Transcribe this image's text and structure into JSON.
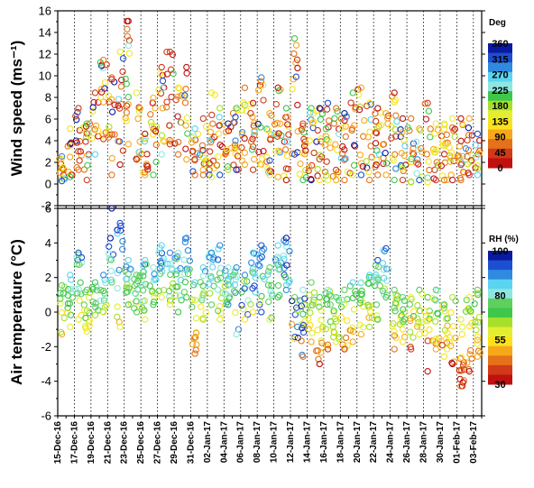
{
  "chart_data": [
    {
      "type": "scatter",
      "ylabel": "Wind speed (ms⁻¹)",
      "ylim": [
        -2,
        17
      ],
      "yticks": [
        "-2",
        "0",
        "2",
        "4",
        "6",
        "8",
        "10",
        "12",
        "14",
        "16"
      ],
      "colorbar": {
        "title": "Deg",
        "ticks": [
          "360",
          "315",
          "270",
          "225",
          "180",
          "135",
          "90",
          "45",
          "0"
        ],
        "colors": [
          "#0a1aa0",
          "#1c4fd0",
          "#2f8ae0",
          "#5ad4f0",
          "#8fe6e0",
          "#3ec84a",
          "#a6e02a",
          "#e4ee30",
          "#fbe21c",
          "#f7a81a",
          "#e4721a",
          "#d03a18",
          "#c01010"
        ]
      },
      "daily_ranges": [
        {
          "date": "15-Dec-16",
          "min": 0.4,
          "max": 2.8
        },
        {
          "date": "16-Dec-16",
          "min": 0.8,
          "max": 5.5
        },
        {
          "date": "17-Dec-16",
          "min": 1.5,
          "max": 7.5
        },
        {
          "date": "18-Dec-16",
          "min": 0.5,
          "max": 6.0
        },
        {
          "date": "19-Dec-16",
          "min": 3.0,
          "max": 9.0
        },
        {
          "date": "20-Dec-16",
          "min": 4.5,
          "max": 12.2
        },
        {
          "date": "21-Dec-16",
          "min": 1.0,
          "max": 10.5
        },
        {
          "date": "22-Dec-16",
          "min": 2.0,
          "max": 13.0
        },
        {
          "date": "23-Dec-16",
          "min": 4.0,
          "max": 16.0
        },
        {
          "date": "24-Dec-16",
          "min": 2.5,
          "max": 9.0
        },
        {
          "date": "25-Dec-16",
          "min": 1.0,
          "max": 5.0
        },
        {
          "date": "26-Dec-16",
          "min": 1.0,
          "max": 8.5
        },
        {
          "date": "27-Dec-16",
          "min": 3.0,
          "max": 11.5
        },
        {
          "date": "28-Dec-16",
          "min": 4.0,
          "max": 13.0
        },
        {
          "date": "29-Dec-16",
          "min": 3.0,
          "max": 9.5
        },
        {
          "date": "30-Dec-16",
          "min": 2.5,
          "max": 11.5
        },
        {
          "date": "31-Dec-16",
          "min": 1.0,
          "max": 5.5
        },
        {
          "date": "01-Jan-17",
          "min": 1.0,
          "max": 6.5
        },
        {
          "date": "02-Jan-17",
          "min": 0.8,
          "max": 9.0
        },
        {
          "date": "03-Jan-17",
          "min": 1.0,
          "max": 7.5
        },
        {
          "date": "04-Jan-17",
          "min": 1.5,
          "max": 6.0
        },
        {
          "date": "05-Jan-17",
          "min": 1.5,
          "max": 7.5
        },
        {
          "date": "06-Jan-17",
          "min": 2.0,
          "max": 9.5
        },
        {
          "date": "07-Jan-17",
          "min": 1.5,
          "max": 8.0
        },
        {
          "date": "08-Jan-17",
          "min": 2.0,
          "max": 10.5
        },
        {
          "date": "09-Jan-17",
          "min": 1.0,
          "max": 7.0
        },
        {
          "date": "10-Jan-17",
          "min": 0.8,
          "max": 9.5
        },
        {
          "date": "11-Jan-17",
          "min": 0.5,
          "max": 7.5
        },
        {
          "date": "12-Jan-17",
          "min": 3.0,
          "max": 14.3
        },
        {
          "date": "13-Jan-17",
          "min": 0.5,
          "max": 6.0
        },
        {
          "date": "14-Jan-17",
          "min": 0.5,
          "max": 7.5
        },
        {
          "date": "15-Jan-17",
          "min": 0.5,
          "max": 7.5
        },
        {
          "date": "16-Jan-17",
          "min": 0.5,
          "max": 8.0
        },
        {
          "date": "17-Jan-17",
          "min": 0.5,
          "max": 7.5
        },
        {
          "date": "18-Jan-17",
          "min": 0.5,
          "max": 7.0
        },
        {
          "date": "19-Jan-17",
          "min": 1.0,
          "max": 9.0
        },
        {
          "date": "20-Jan-17",
          "min": 1.0,
          "max": 9.5
        },
        {
          "date": "21-Jan-17",
          "min": 0.5,
          "max": 8.0
        },
        {
          "date": "22-Jan-17",
          "min": 1.0,
          "max": 7.5
        },
        {
          "date": "23-Jan-17",
          "min": 1.0,
          "max": 7.0
        },
        {
          "date": "24-Jan-17",
          "min": 0.5,
          "max": 9.0
        },
        {
          "date": "25-Jan-17",
          "min": 0.5,
          "max": 6.5
        },
        {
          "date": "26-Jan-17",
          "min": 0.3,
          "max": 6.5
        },
        {
          "date": "27-Jan-17",
          "min": 0.5,
          "max": 5.5
        },
        {
          "date": "28-Jan-17",
          "min": 0.3,
          "max": 8.0
        },
        {
          "date": "29-Jan-17",
          "min": 0.5,
          "max": 6.0
        },
        {
          "date": "30-Jan-17",
          "min": 0.5,
          "max": 6.0
        },
        {
          "date": "31-Jan-17",
          "min": 0.5,
          "max": 6.5
        },
        {
          "date": "01-Feb-17",
          "min": 0.5,
          "max": 6.5
        },
        {
          "date": "02-Feb-17",
          "min": 1.0,
          "max": 6.5
        },
        {
          "date": "03-Feb-17",
          "min": 1.0,
          "max": 5.0
        }
      ]
    },
    {
      "type": "scatter",
      "ylabel": "Air temperature (°C)",
      "ylim": [
        -6,
        8
      ],
      "yticks": [
        "-6",
        "-4",
        "-2",
        "0",
        "2",
        "4",
        "6"
      ],
      "xlabels": [
        "15-Dec-16",
        "17-Dec-16",
        "19-Dec-16",
        "21-Dec-16",
        "23-Dec-16",
        "25-Dec-16",
        "27-Dec-16",
        "29-Dec-16",
        "31-Dec-16",
        "02-Jan-17",
        "04-Jan-17",
        "06-Jan-17",
        "08-Jan-17",
        "10-Jan-17",
        "12-Jan-17",
        "14-Jan-17",
        "16-Jan-17",
        "18-Jan-17",
        "20-Jan-17",
        "22-Jan-17",
        "24-Jan-17",
        "26-Jan-17",
        "28-Jan-17",
        "30-Jan-17",
        "01-Feb-17",
        "03-Feb-17"
      ],
      "colorbar": {
        "title": "RH (%)",
        "ticks": [
          "100",
          "80",
          "55",
          "30"
        ],
        "colors": [
          "#0a1aa0",
          "#1c4fd0",
          "#2f8ae0",
          "#5ad4f0",
          "#8fe6e0",
          "#5fcf60",
          "#3ec84a",
          "#a6e02a",
          "#e4ee30",
          "#fbe21c",
          "#f7a81a",
          "#e4721a",
          "#d03a18",
          "#c01010"
        ]
      },
      "daily_ranges": [
        {
          "date": "15-Dec-16",
          "min": -0.5,
          "max": 2.8
        },
        {
          "date": "16-Dec-16",
          "min": 0.0,
          "max": 3.5
        },
        {
          "date": "17-Dec-16",
          "min": 0.5,
          "max": 5.0
        },
        {
          "date": "18-Dec-16",
          "min": -0.3,
          "max": 2.5
        },
        {
          "date": "19-Dec-16",
          "min": 0.8,
          "max": 3.0
        },
        {
          "date": "20-Dec-16",
          "min": 1.0,
          "max": 3.5
        },
        {
          "date": "21-Dec-16",
          "min": 3.0,
          "max": 8.0
        },
        {
          "date": "22-Dec-16",
          "min": 0.0,
          "max": 7.0
        },
        {
          "date": "23-Dec-16",
          "min": 1.5,
          "max": 4.5
        },
        {
          "date": "24-Dec-16",
          "min": 1.0,
          "max": 3.5
        },
        {
          "date": "25-Dec-16",
          "min": 0.5,
          "max": 4.5
        },
        {
          "date": "26-Dec-16",
          "min": 1.5,
          "max": 4.0
        },
        {
          "date": "27-Dec-16",
          "min": 2.0,
          "max": 5.5
        },
        {
          "date": "28-Dec-16",
          "min": 1.5,
          "max": 5.0
        },
        {
          "date": "29-Dec-16",
          "min": 1.0,
          "max": 5.0
        },
        {
          "date": "30-Dec-16",
          "min": 2.0,
          "max": 6.0
        },
        {
          "date": "31-Dec-16",
          "min": -1.8,
          "max": 3.0
        },
        {
          "date": "01-Jan-17",
          "min": 0.5,
          "max": 4.0
        },
        {
          "date": "02-Jan-17",
          "min": 1.5,
          "max": 5.0
        },
        {
          "date": "03-Jan-17",
          "min": 0.5,
          "max": 5.5
        },
        {
          "date": "04-Jan-17",
          "min": 1.5,
          "max": 4.0
        },
        {
          "date": "05-Jan-17",
          "min": -0.5,
          "max": 4.0
        },
        {
          "date": "06-Jan-17",
          "min": 0.5,
          "max": 3.5
        },
        {
          "date": "07-Jan-17",
          "min": 1.0,
          "max": 5.0
        },
        {
          "date": "08-Jan-17",
          "min": 1.0,
          "max": 5.5
        },
        {
          "date": "09-Jan-17",
          "min": 0.5,
          "max": 4.0
        },
        {
          "date": "10-Jan-17",
          "min": 2.0,
          "max": 5.5
        },
        {
          "date": "11-Jan-17",
          "min": 2.5,
          "max": 6.0
        },
        {
          "date": "12-Jan-17",
          "min": -0.8,
          "max": 2.0
        },
        {
          "date": "13-Jan-17",
          "min": -2.0,
          "max": 2.5
        },
        {
          "date": "14-Jan-17",
          "min": -1.0,
          "max": 3.0
        },
        {
          "date": "15-Jan-17",
          "min": -2.5,
          "max": 2.0
        },
        {
          "date": "16-Jan-17",
          "min": -1.5,
          "max": 2.5
        },
        {
          "date": "17-Jan-17",
          "min": -1.0,
          "max": 2.0
        },
        {
          "date": "18-Jan-17",
          "min": -1.5,
          "max": 2.5
        },
        {
          "date": "19-Jan-17",
          "min": -1.0,
          "max": 3.0
        },
        {
          "date": "20-Jan-17",
          "min": -0.5,
          "max": 3.0
        },
        {
          "date": "21-Jan-17",
          "min": 0.0,
          "max": 3.5
        },
        {
          "date": "22-Jan-17",
          "min": 0.5,
          "max": 4.5
        },
        {
          "date": "23-Jan-17",
          "min": 2.0,
          "max": 5.3
        },
        {
          "date": "24-Jan-17",
          "min": -1.5,
          "max": 2.5
        },
        {
          "date": "25-Jan-17",
          "min": -1.0,
          "max": 2.0
        },
        {
          "date": "26-Jan-17",
          "min": -1.5,
          "max": 2.0
        },
        {
          "date": "27-Jan-17",
          "min": -0.5,
          "max": 2.5
        },
        {
          "date": "28-Jan-17",
          "min": -3.0,
          "max": 2.0
        },
        {
          "date": "29-Jan-17",
          "min": -1.5,
          "max": 2.5
        },
        {
          "date": "30-Jan-17",
          "min": -2.0,
          "max": 1.5
        },
        {
          "date": "31-Jan-17",
          "min": -2.5,
          "max": 2.0
        },
        {
          "date": "01-Feb-17",
          "min": -4.0,
          "max": 0.5
        },
        {
          "date": "02-Feb-17",
          "min": -3.0,
          "max": 2.0
        },
        {
          "date": "03-Feb-17",
          "min": -2.0,
          "max": 2.5
        }
      ]
    }
  ]
}
